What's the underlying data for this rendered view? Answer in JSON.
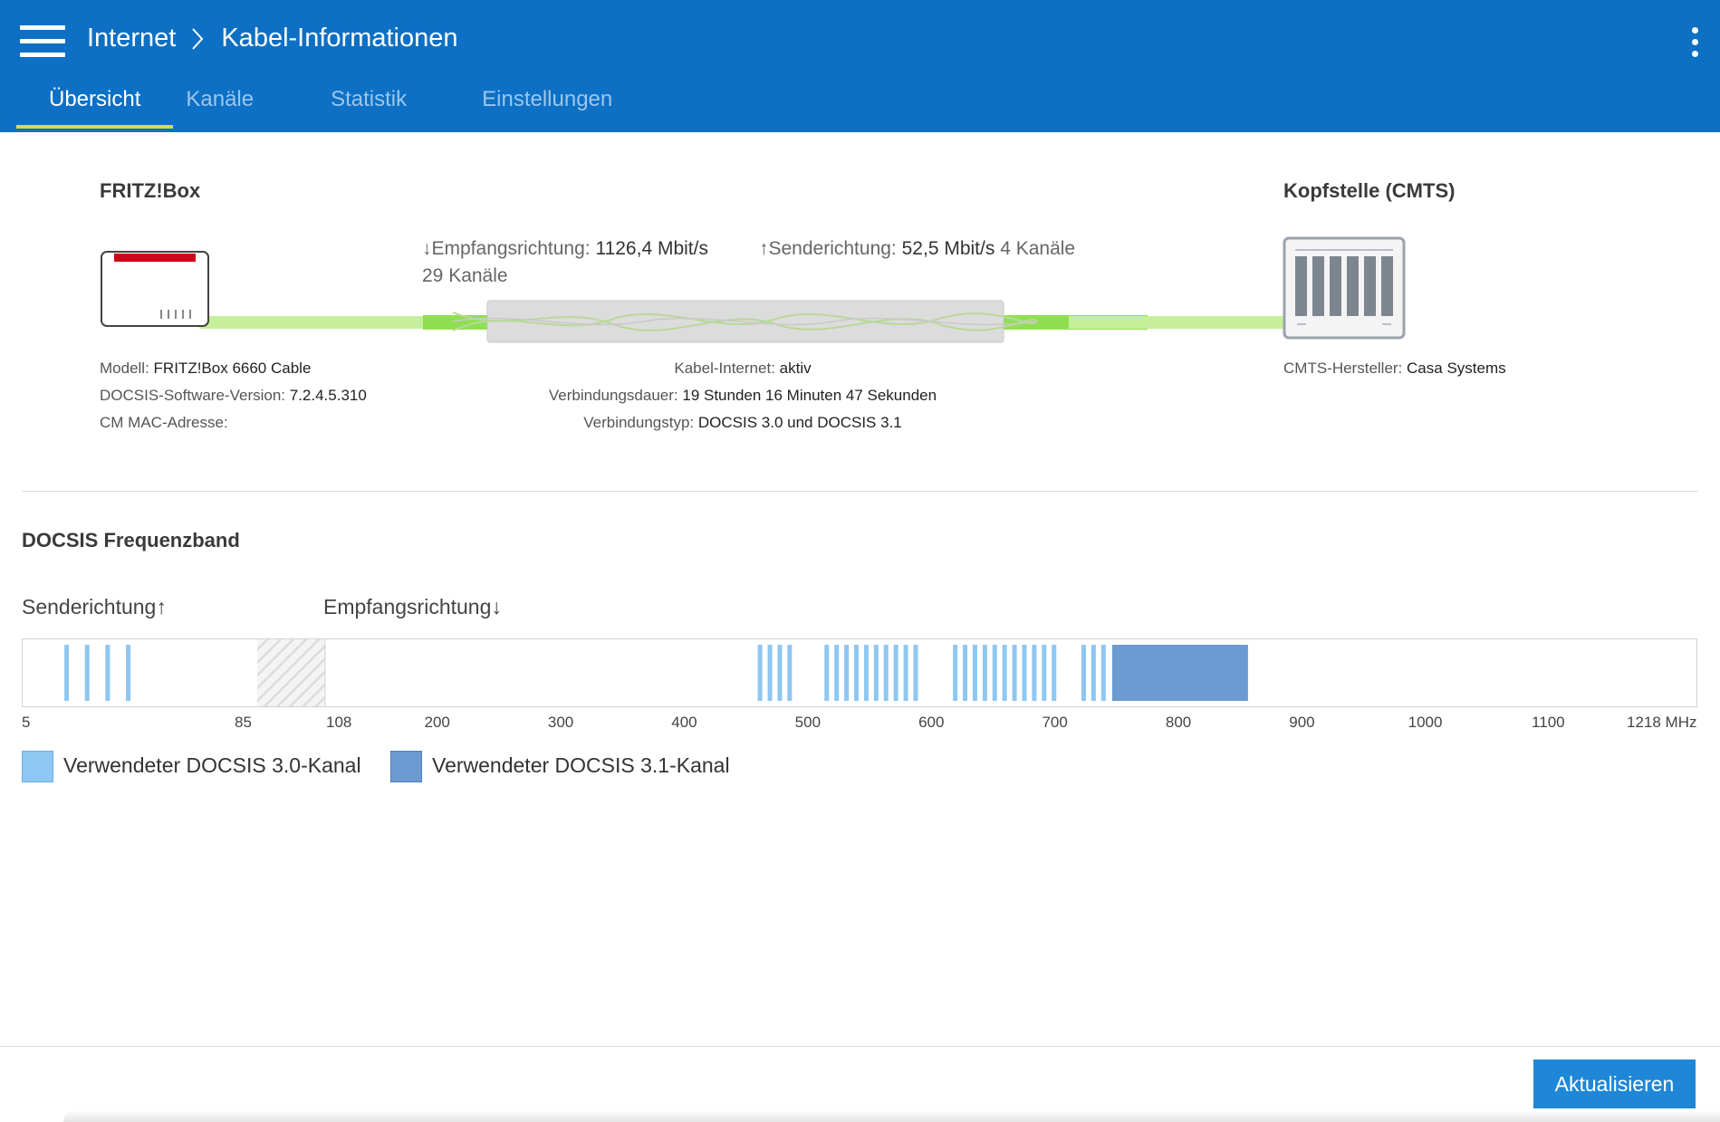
{
  "header": {
    "breadcrumb": [
      "Internet",
      "Kabel-Informationen"
    ],
    "tabs": [
      {
        "label": "Übersicht",
        "active": true
      },
      {
        "label": "Kanäle",
        "active": false
      },
      {
        "label": "Statistik",
        "active": false
      },
      {
        "label": "Einstellungen",
        "active": false
      }
    ]
  },
  "overview": {
    "fritzbox": {
      "title": "FRITZ!Box",
      "model_label": "Modell:",
      "model_value": "FRITZ!Box 6660 Cable",
      "docsis_label": "DOCSIS-Software-Version:",
      "docsis_value": "7.2.4.5.310",
      "mac_label": "CM MAC-Adresse:",
      "mac_value": ""
    },
    "downstream": {
      "label": "↓Empfangsrichtung:",
      "rate": "1126,4 Mbit/s",
      "channels": "29 Kanäle"
    },
    "upstream": {
      "label": "↑Senderichtung:",
      "rate": "52,5 Mbit/s",
      "channels": "4 Kanäle"
    },
    "connection": {
      "internet_label": "Kabel-Internet:",
      "internet_value": "aktiv",
      "duration_label": "Verbindungsdauer:",
      "duration_value": "19 Stunden 16 Minuten 47 Sekunden",
      "type_label": "Verbindungstyp:",
      "type_value": "DOCSIS 3.0 und DOCSIS 3.1"
    },
    "cmts": {
      "title": "Kopfstelle (CMTS)",
      "vendor_label": "CMTS-Hersteller:",
      "vendor_value": "Casa Systems"
    }
  },
  "frequency_band": {
    "title": "DOCSIS Frequenzband",
    "upstream_label": "Senderichtung↑",
    "downstream_label": "Empfangsrichtung↓",
    "ticks": [
      "5",
      "85",
      "108",
      "200",
      "300",
      "400",
      "500",
      "600",
      "700",
      "800",
      "900",
      "1000",
      "1100",
      "1218 MHz"
    ],
    "legend": [
      {
        "label": "Verwendeter DOCSIS 3.0-Kanal",
        "color": "#8ec7f1"
      },
      {
        "label": "Verwendeter DOCSIS 3.1-Kanal",
        "color": "#6c9bd2"
      }
    ],
    "upstream_channels_mhz": [
      20,
      27,
      34,
      41
    ],
    "downstream_docsis30_mhz": [
      460,
      468,
      476,
      484,
      514,
      522,
      530,
      538,
      546,
      554,
      562,
      570,
      578,
      586,
      618,
      626,
      634,
      642,
      650,
      658,
      666,
      674,
      682,
      690,
      698,
      722,
      730,
      738
    ],
    "downstream_docsis31_mhz": [
      745,
      855
    ],
    "guard_band_mhz": [
      85,
      108
    ],
    "range_mhz": [
      5,
      1218
    ]
  },
  "footer": {
    "refresh_label": "Aktualisieren"
  },
  "colors": {
    "header_bg": "#0d70c4",
    "active_tab_underline": "#cde43c",
    "docsis30": "#8ec7f1",
    "docsis31": "#6c9bd2",
    "button": "#1e87d8"
  }
}
